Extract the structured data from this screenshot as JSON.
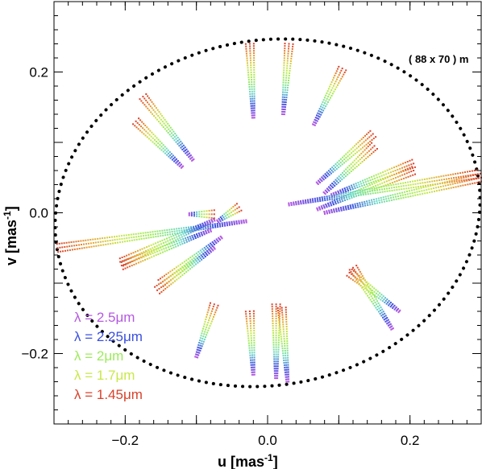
{
  "chart_data": {
    "type": "scatter",
    "xlabel_main": "u [mas",
    "xlabel_sup": "-1",
    "xlabel_end": "]",
    "ylabel_main": "v [mas",
    "ylabel_sup": "-1",
    "ylabel_end": "]",
    "xlim": [
      -0.3,
      0.3
    ],
    "ylim": [
      -0.3,
      0.3
    ],
    "xticks": [
      -0.2,
      0.0,
      0.2
    ],
    "yticks": [
      -0.2,
      0.0,
      0.2
    ],
    "xtick_labels": [
      "−0.2",
      "0.0",
      "0.2"
    ],
    "ytick_labels": [
      "−0.2",
      "0.0",
      "0.2"
    ],
    "grid": false,
    "annotation": "( 88 x 70 ) m",
    "ellipse": {
      "center": [
        0.0,
        0.0
      ],
      "semi_major": 0.3,
      "semi_minor": 0.245,
      "tilt_deg": 10,
      "style": "dotted"
    },
    "legend": [
      {
        "label": "λ = 2.5μm",
        "color": "#b45ae0"
      },
      {
        "label": "λ = 2.25μm",
        "color": "#3a4fe0"
      },
      {
        "label": "λ = 2μm",
        "color": "#9ceb5a"
      },
      {
        "label": "λ = 1.7μm",
        "color": "#c8e84a"
      },
      {
        "label": "λ = 1.45μm",
        "color": "#d9412b"
      }
    ],
    "legend_position": "bottom-left",
    "tracks": [
      {
        "start": [
          -0.025,
          0.24
        ],
        "end": [
          -0.02,
          0.135
        ]
      },
      {
        "start": [
          0.03,
          0.24
        ],
        "end": [
          0.022,
          0.14
        ]
      },
      {
        "start": [
          0.105,
          0.205
        ],
        "end": [
          0.065,
          0.125
        ]
      },
      {
        "start": [
          -0.175,
          0.165
        ],
        "end": [
          -0.105,
          0.075
        ]
      },
      {
        "start": [
          -0.185,
          0.13
        ],
        "end": [
          -0.12,
          0.065
        ]
      },
      {
        "start": [
          0.148,
          0.112
        ],
        "end": [
          0.07,
          0.042
        ]
      },
      {
        "start": [
          0.15,
          0.095
        ],
        "end": [
          0.08,
          0.028
        ]
      },
      {
        "start": [
          0.205,
          0.07
        ],
        "end": [
          0.09,
          0.025
        ]
      },
      {
        "start": [
          0.205,
          0.06
        ],
        "end": [
          0.07,
          0.005
        ]
      },
      {
        "start": [
          0.295,
          0.055
        ],
        "end": [
          0.03,
          0.012
        ]
      },
      {
        "start": [
          0.3,
          0.05
        ],
        "end": [
          0.08,
          0.0
        ]
      },
      {
        "start": [
          -0.295,
          -0.05
        ],
        "end": [
          -0.03,
          -0.012
        ]
      },
      {
        "start": [
          -0.205,
          -0.07
        ],
        "end": [
          -0.075,
          -0.01
        ]
      },
      {
        "start": [
          -0.205,
          -0.075
        ],
        "end": [
          -0.08,
          -0.025
        ]
      },
      {
        "start": [
          -0.15,
          -0.1
        ],
        "end": [
          -0.065,
          -0.035
        ]
      },
      {
        "start": [
          -0.155,
          -0.11
        ],
        "end": [
          -0.075,
          -0.05
        ]
      },
      {
        "start": [
          -0.075,
          -0.002
        ],
        "end": [
          -0.11,
          -0.002
        ]
      },
      {
        "start": [
          -0.04,
          0.008
        ],
        "end": [
          -0.07,
          -0.012
        ]
      },
      {
        "start": [
          0.12,
          -0.078
        ],
        "end": [
          0.175,
          -0.165
        ]
      },
      {
        "start": [
          0.115,
          -0.085
        ],
        "end": [
          0.185,
          -0.14
        ]
      },
      {
        "start": [
          -0.025,
          -0.14
        ],
        "end": [
          -0.02,
          -0.23
        ]
      },
      {
        "start": [
          0.02,
          -0.135
        ],
        "end": [
          0.028,
          -0.24
        ]
      },
      {
        "start": [
          0.012,
          -0.13
        ],
        "end": [
          0.012,
          -0.235
        ]
      },
      {
        "start": [
          -0.075,
          -0.13
        ],
        "end": [
          -0.1,
          -0.205
        ]
      }
    ]
  }
}
